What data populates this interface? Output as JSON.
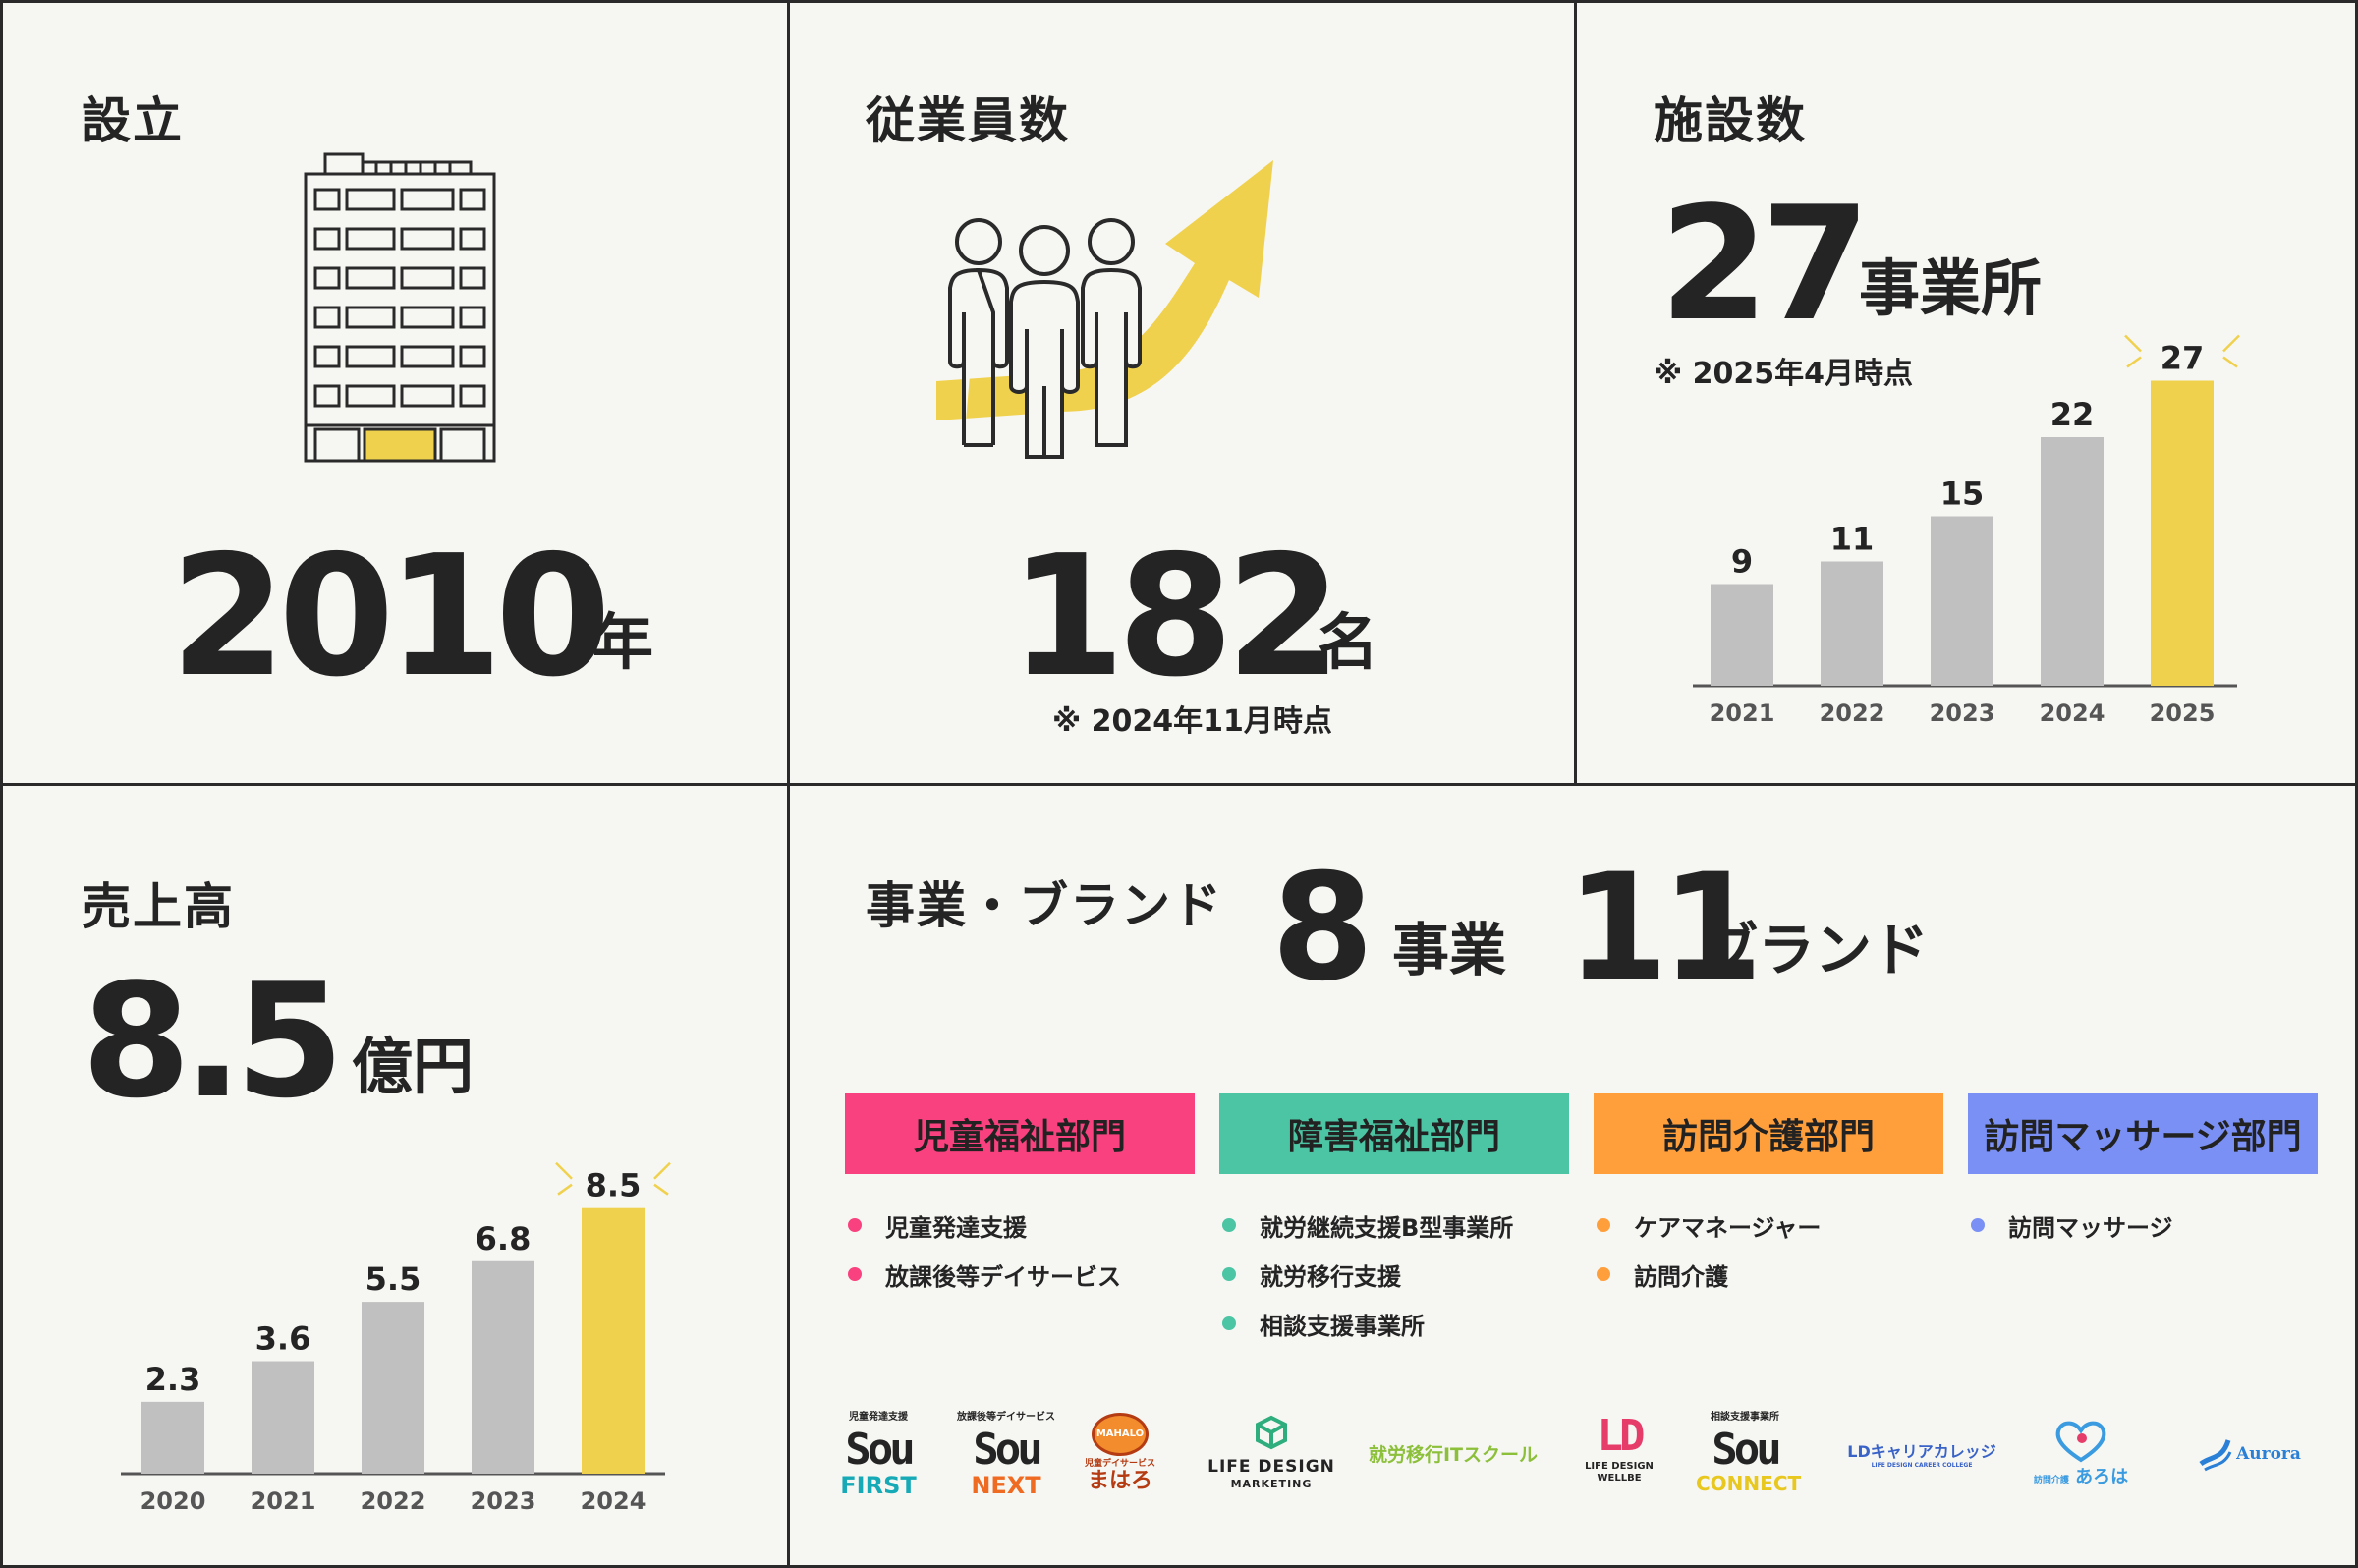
{
  "colors": {
    "text": "#242424",
    "bar_gray": "#c0c0c0",
    "bar_highlight": "#f0d14e",
    "pink": "#f8417e",
    "green": "#4cc5a4",
    "orange": "#ff9f3c",
    "blue": "#7b90f5"
  },
  "founded": {
    "title": "設立",
    "value": "2010",
    "unit": "年",
    "icon": "office-building-icon"
  },
  "employees": {
    "title": "従業員数",
    "value": "182",
    "unit": "名",
    "note": "※ 2024年11月時点",
    "icon": "people-growth-icon"
  },
  "facilities": {
    "title": "施設数",
    "value": "27",
    "unit": "事業所",
    "note": "※ 2025年4月時点"
  },
  "revenue": {
    "title": "売上高",
    "value": "8.5",
    "unit": "億円"
  },
  "chart_data": [
    {
      "type": "bar",
      "categories": [
        "2021",
        "2022",
        "2023",
        "2024",
        "2025"
      ],
      "values": [
        9,
        11,
        15,
        22,
        27
      ],
      "labels": [
        "9",
        "11",
        "15",
        "22",
        "27"
      ],
      "highlight_index": 4,
      "ylim": [
        0,
        30
      ]
    },
    {
      "type": "bar",
      "categories": [
        "2020",
        "2021",
        "2022",
        "2023",
        "2024"
      ],
      "values": [
        2.3,
        3.6,
        5.5,
        6.8,
        8.5
      ],
      "labels": [
        "2.3",
        "3.6",
        "5.5",
        "6.8",
        "8.5"
      ],
      "highlight_index": 4,
      "ylim": [
        0,
        10
      ]
    }
  ],
  "business": {
    "title": "事業・ブランド",
    "business_count": "8",
    "business_unit": "事業",
    "brand_count": "11",
    "brand_unit": "ブランド",
    "departments": [
      {
        "name": "児童福祉部門",
        "color": "#f8417e",
        "items": [
          "児童発達支援",
          "放課後等デイサービス"
        ]
      },
      {
        "name": "障害福祉部門",
        "color": "#4cc5a4",
        "items": [
          "就労継続支援B型事業所",
          "就労移行支援",
          "相談支援事業所"
        ]
      },
      {
        "name": "訪問介護部門",
        "color": "#ff9f3c",
        "items": [
          "ケアマネージャー",
          "訪問介護"
        ]
      },
      {
        "name": "訪問マッサージ部門",
        "color": "#7b90f5",
        "items": [
          "訪問マッサージ"
        ]
      }
    ],
    "brands": {
      "sou_first": {
        "small": "児童発達支援",
        "main": "Sou",
        "sub": "FIRST"
      },
      "sou_next": {
        "small": "放課後等デイサービス",
        "main": "Sou",
        "sub": "NEXT"
      },
      "mahalo": {
        "badge": "MAHALO",
        "small": "児童デイサービス",
        "main": "まはろ"
      },
      "life_design_marketing": {
        "line1": "LIFE DESIGN",
        "line2": "MARKETING"
      },
      "it_school": {
        "main": "就労移行ITスクール"
      },
      "life_design_wellbe": {
        "line1": "LIFE DESIGN",
        "line2": "WELLBE"
      },
      "sou_connect": {
        "small": "相談支援事業所",
        "main": "Sou",
        "sub": "CONNECT"
      },
      "ld_career": {
        "main": "LDキャリアカレッジ",
        "sub": "LIFE DESIGN CAREER COLLEGE"
      },
      "aroha": {
        "small": "訪問介護",
        "main": "あろは"
      },
      "aurora": {
        "main": "Aurora"
      }
    }
  }
}
